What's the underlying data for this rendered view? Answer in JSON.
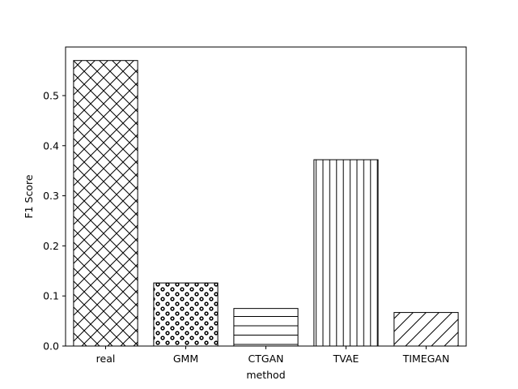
{
  "chart_data": {
    "type": "bar",
    "title": "",
    "xlabel": "method",
    "ylabel": "F1 Score",
    "categories": [
      "real",
      "GMM",
      "CTGAN",
      "TVAE",
      "TIMEGAN"
    ],
    "values": [
      0.57,
      0.126,
      0.075,
      0.372,
      0.067
    ],
    "hatches": [
      "crosshatch",
      "dots",
      "horizontal",
      "vertical",
      "diagonal"
    ],
    "ylim": [
      0,
      0.597
    ],
    "yticks": [
      "0.0",
      "0.1",
      "0.2",
      "0.3",
      "0.4",
      "0.5"
    ],
    "grid": false,
    "legend": "none",
    "bar_fill": "#ffffff",
    "bar_edge": "#000000"
  }
}
